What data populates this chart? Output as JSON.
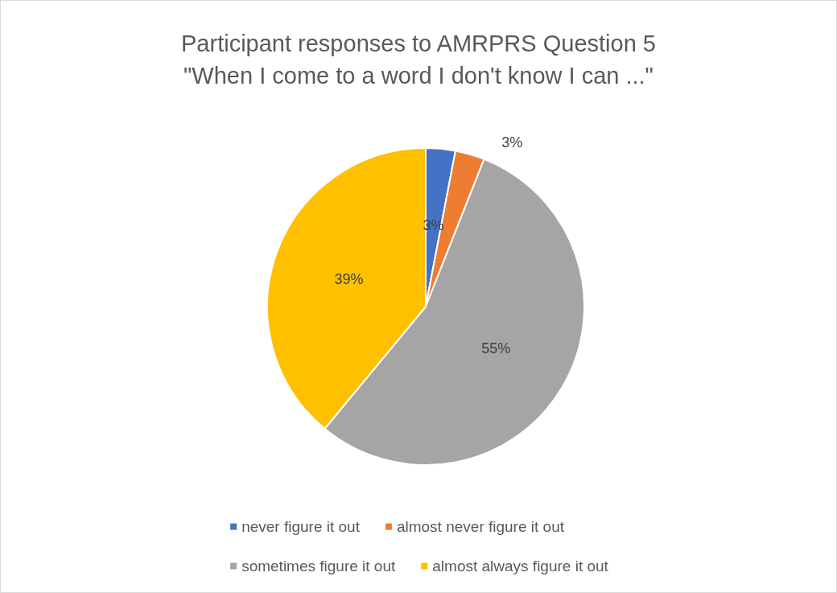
{
  "chart_data": {
    "type": "pie",
    "title": "Participant responses to AMRPRS Question 5\n\"When I come to a word I don't know I can ...\"",
    "categories": [
      "never figure it out",
      "almost never figure it out",
      "sometimes figure it out",
      "almost always figure it out"
    ],
    "values": [
      3,
      3,
      55,
      39
    ],
    "colors": [
      "#4472c4",
      "#ed7d31",
      "#a5a5a5",
      "#ffc000"
    ],
    "value_labels": [
      "3%",
      "3%",
      "55%",
      "39%"
    ],
    "legend": "bottom"
  }
}
